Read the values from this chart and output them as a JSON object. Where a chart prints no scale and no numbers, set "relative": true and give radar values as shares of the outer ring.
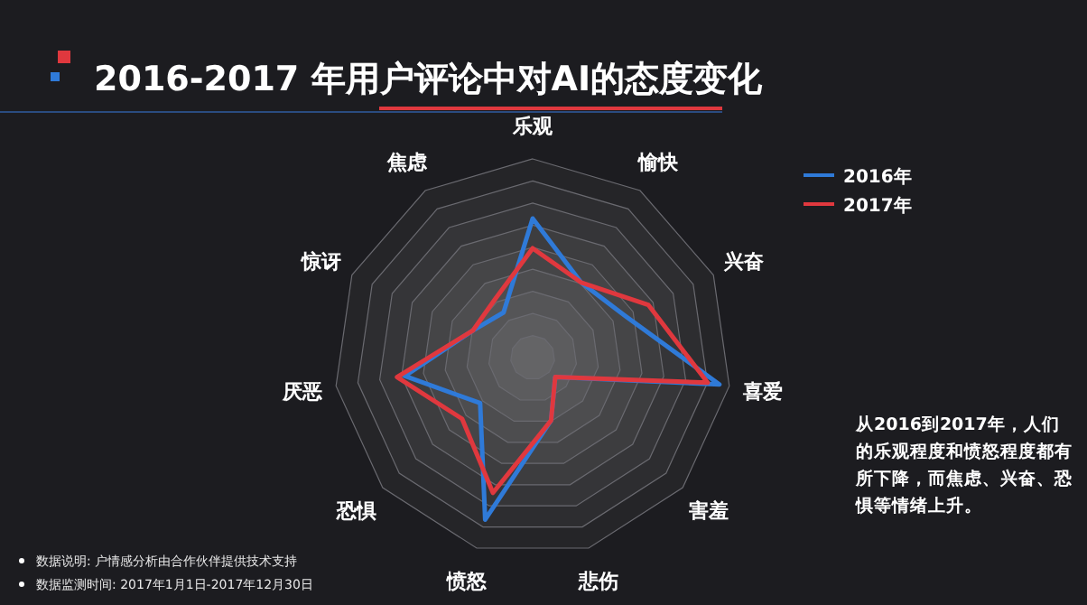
{
  "chart_data": {
    "type": "radar",
    "title": "2016-2017 年用户评论中对AI的态度变化",
    "relative": true,
    "legend": "top right",
    "categories": [
      "乐观",
      "愉快",
      "兴奋",
      "喜爱",
      "害羞",
      "悲伤",
      "愤怒",
      "恐惧",
      "厌恶",
      "惊讶",
      "焦虑"
    ],
    "series": [
      {
        "name": "2016年",
        "color": "#2f7ad8",
        "values": [
          0.7,
          0.45,
          0.51,
          0.95,
          0.15,
          0.33,
          0.85,
          0.35,
          0.65,
          0.33,
          0.27
        ]
      },
      {
        "name": "2017年",
        "color": "#e0383e",
        "values": [
          0.55,
          0.45,
          0.64,
          0.89,
          0.15,
          0.33,
          0.71,
          0.47,
          0.69,
          0.33,
          0.35
        ]
      }
    ],
    "annotations": [
      "从2016到2017年，人们的乐观程度和愤怒程度都有所下降，而焦虑、兴奋、恐惧等情绪上升。",
      "数据说明: 户情感分析由合作伙伴提供技术支持",
      "数据监测时间: 2017年1月1日-2017年12月30日"
    ]
  }
}
